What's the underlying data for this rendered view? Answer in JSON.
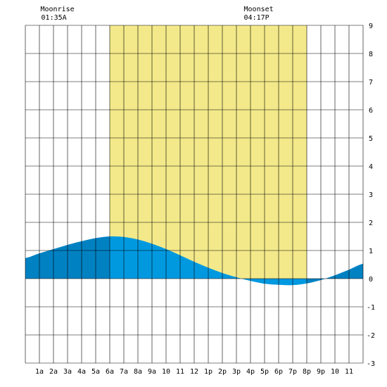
{
  "chart_data": {
    "type": "area",
    "title": "",
    "xlabel": "",
    "ylabel": "",
    "x_tick_labels": [
      "1a",
      "2a",
      "3a",
      "4a",
      "5a",
      "6a",
      "7a",
      "8a",
      "9a",
      "10",
      "11",
      "12",
      "1p",
      "2p",
      "3p",
      "4p",
      "5p",
      "6p",
      "7p",
      "8p",
      "9p",
      "10",
      "11"
    ],
    "y_tick_labels": [
      "9",
      "8",
      "7",
      "6",
      "5",
      "4",
      "3",
      "2",
      "1",
      "0",
      "-1",
      "-2",
      "-3"
    ],
    "xlim": [
      0,
      24
    ],
    "ylim": [
      -3,
      9
    ],
    "grid": true,
    "daylight": {
      "start_hour": 6,
      "end_hour": 20
    },
    "moon": {
      "moonrise_label": "Moonrise",
      "moonrise_time": "01:35A",
      "moonrise_hour": 1.58,
      "moonset_label": "Moonset",
      "moonset_time": "04:17P",
      "moonset_hour": 16.28
    },
    "series": [
      {
        "x": [
          0,
          1,
          2,
          3,
          4,
          5,
          6,
          7,
          8,
          9,
          10,
          11,
          12,
          13,
          14,
          15,
          16,
          17,
          18,
          19,
          20,
          21,
          22,
          23,
          24
        ],
        "values": [
          0.73,
          0.9,
          1.05,
          1.2,
          1.33,
          1.44,
          1.5,
          1.48,
          1.39,
          1.24,
          1.05,
          0.83,
          0.6,
          0.39,
          0.2,
          0.05,
          -0.08,
          -0.18,
          -0.22,
          -0.23,
          -0.17,
          -0.05,
          0.12,
          0.32,
          0.53
        ]
      }
    ],
    "colors": {
      "daylight": "#f3e98a",
      "tide_day": "#0099e0",
      "tide_night": "#0081c2",
      "grid": "#000000",
      "background": "#ffffff"
    }
  }
}
